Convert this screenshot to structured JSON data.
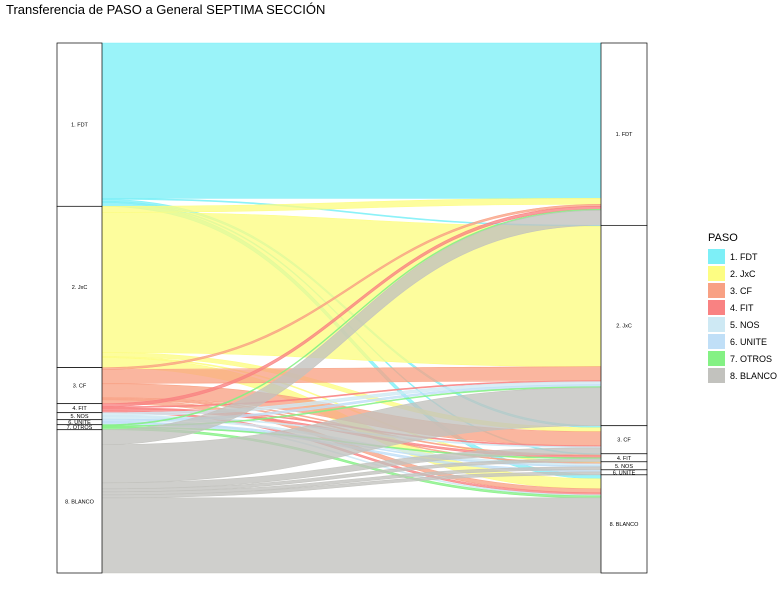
{
  "chart_data": {
    "type": "alluvial",
    "title": "Transferencia de PASO a General SEPTIMA SECCIÓN",
    "legend": {
      "title": "PASO",
      "position": "right"
    },
    "categories": [
      "1. FDT",
      "2. JxC",
      "3. CF",
      "4. FIT",
      "5. NOS",
      "6. UNITE",
      "7. OTROS",
      "8. BLANCO"
    ],
    "colors": {
      "1. FDT": "#7DEFF7",
      "2. JxC": "#FDFD82",
      "3. CF": "#F8A184",
      "4. FIT": "#F98282",
      "5. NOS": "#CEE9F4",
      "6. UNITE": "#C0DFF7",
      "7. OTROS": "#84F184",
      "8. BLANCO": "#C2C2BE"
    },
    "axes": [
      {
        "name": "PASO",
        "strata": [
          {
            "label": "1. FDT",
            "value": 163
          },
          {
            "label": "2. JxC",
            "value": 161
          },
          {
            "label": "3. CF",
            "value": 36
          },
          {
            "label": "4. FIT",
            "value": 9
          },
          {
            "label": "5. NOS",
            "value": 7
          },
          {
            "label": "6. UNITE",
            "value": 5
          },
          {
            "label": "7. OTROS",
            "value": 5
          },
          {
            "label": "8. BLANCO",
            "value": 143
          }
        ]
      },
      {
        "name": "General",
        "strata": [
          {
            "label": "1. FDT",
            "value": 182
          },
          {
            "label": "2. JxC",
            "value": 200
          },
          {
            "label": "3. CF",
            "value": 28
          },
          {
            "label": "4. FIT",
            "value": 8
          },
          {
            "label": "5. NOS",
            "value": 8
          },
          {
            "label": "6. UNITE",
            "value": 5
          },
          {
            "label": "8. BLANCO",
            "value": 98
          }
        ]
      }
    ],
    "flows": [
      {
        "from": "1. FDT",
        "to": "1. FDT",
        "value": 155
      },
      {
        "from": "1. FDT",
        "to": "2. JxC",
        "value": 1
      },
      {
        "from": "1. FDT",
        "to": "3. CF",
        "value": 2
      },
      {
        "from": "1. FDT",
        "to": "4. FIT",
        "value": 1
      },
      {
        "from": "1. FDT",
        "to": "8. BLANCO",
        "value": 4
      },
      {
        "from": "2. JxC",
        "to": "1. FDT",
        "value": 6
      },
      {
        "from": "2. JxC",
        "to": "2. JxC",
        "value": 140
      },
      {
        "from": "2. JxC",
        "to": "3. CF",
        "value": 4
      },
      {
        "from": "2. JxC",
        "to": "5. NOS",
        "value": 1
      },
      {
        "from": "2. JxC",
        "to": "8. BLANCO",
        "value": 10
      },
      {
        "from": "3. CF",
        "to": "1. FDT",
        "value": 2
      },
      {
        "from": "3. CF",
        "to": "2. JxC",
        "value": 14
      },
      {
        "from": "3. CF",
        "to": "3. CF",
        "value": 14
      },
      {
        "from": "3. CF",
        "to": "4. FIT",
        "value": 1
      },
      {
        "from": "3. CF",
        "to": "5. NOS",
        "value": 1
      },
      {
        "from": "3. CF",
        "to": "8. BLANCO",
        "value": 4
      },
      {
        "from": "4. FIT",
        "to": "1. FDT",
        "value": 3
      },
      {
        "from": "4. FIT",
        "to": "2. JxC",
        "value": 1
      },
      {
        "from": "4. FIT",
        "to": "3. CF",
        "value": 1
      },
      {
        "from": "4. FIT",
        "to": "4. FIT",
        "value": 2
      },
      {
        "from": "4. FIT",
        "to": "8. BLANCO",
        "value": 2
      },
      {
        "from": "5. NOS",
        "to": "2. JxC",
        "value": 3
      },
      {
        "from": "5. NOS",
        "to": "3. CF",
        "value": 1
      },
      {
        "from": "5. NOS",
        "to": "5. NOS",
        "value": 2
      },
      {
        "from": "5. NOS",
        "to": "8. BLANCO",
        "value": 1
      },
      {
        "from": "6. UNITE",
        "to": "2. JxC",
        "value": 2
      },
      {
        "from": "6. UNITE",
        "to": "5. NOS",
        "value": 1
      },
      {
        "from": "6. UNITE",
        "to": "6. UNITE",
        "value": 2
      },
      {
        "from": "7. OTROS",
        "to": "1. FDT",
        "value": 1
      },
      {
        "from": "7. OTROS",
        "to": "2. JxC",
        "value": 1
      },
      {
        "from": "7. OTROS",
        "to": "4. FIT",
        "value": 1
      },
      {
        "from": "7. OTROS",
        "to": "8. BLANCO",
        "value": 2
      },
      {
        "from": "8. BLANCO",
        "to": "1. FDT",
        "value": 15
      },
      {
        "from": "8. BLANCO",
        "to": "2. JxC",
        "value": 38
      },
      {
        "from": "8. BLANCO",
        "to": "3. CF",
        "value": 6
      },
      {
        "from": "8. BLANCO",
        "to": "4. FIT",
        "value": 3
      },
      {
        "from": "8. BLANCO",
        "to": "5. NOS",
        "value": 3
      },
      {
        "from": "8. BLANCO",
        "to": "6. UNITE",
        "value": 3
      },
      {
        "from": "8. BLANCO",
        "to": "8. BLANCO",
        "value": 75
      }
    ]
  }
}
